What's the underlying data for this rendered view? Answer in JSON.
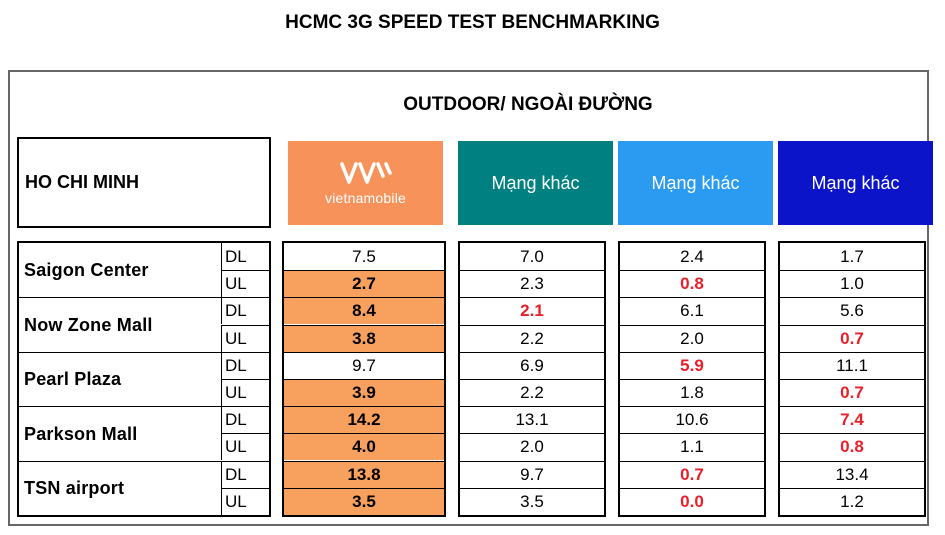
{
  "title": "HCMC 3G SPEED TEST BENCHMARKING",
  "subtitle": "OUTDOOR/ NGOÀI ĐƯỜNG",
  "region_label": "HO CHI MINH",
  "headers": {
    "vietnamobile": "vietnamobile",
    "other1": "Mạng khác",
    "other2": "Mạng khác",
    "other3": "Mạng khác"
  },
  "colors": {
    "vietnamobile": "#f6925a",
    "other1": "#008080",
    "other2": "#2a9bf0",
    "other3": "#0b14c8",
    "highlight": "#f8a15e",
    "worst": "#e8202a"
  },
  "locations": [
    {
      "name": "Saigon Center",
      "dl": "DL",
      "ul": "UL"
    },
    {
      "name": "Now Zone Mall",
      "dl": "DL",
      "ul": "UL"
    },
    {
      "name": "Pearl Plaza",
      "dl": "DL",
      "ul": "UL"
    },
    {
      "name": "Parkson Mall",
      "dl": "DL",
      "ul": "UL"
    },
    {
      "name": "TSN airport",
      "dl": "DL",
      "ul": "UL"
    }
  ],
  "vietnamobile": [
    "7.5",
    "2.7",
    "8.4",
    "3.8",
    "9.7",
    "3.9",
    "14.2",
    "4.0",
    "13.8",
    "3.5"
  ],
  "other1": [
    "7.0",
    "2.3",
    "2.1",
    "2.2",
    "6.9",
    "2.2",
    "13.1",
    "2.0",
    "9.7",
    "3.5"
  ],
  "other2": [
    "2.4",
    "0.8",
    "6.1",
    "2.0",
    "5.9",
    "1.8",
    "10.6",
    "1.1",
    "0.7",
    "0.0"
  ],
  "other3": [
    "1.7",
    "1.0",
    "5.6",
    "0.7",
    "11.1",
    "0.7",
    "7.4",
    "0.8",
    "13.4",
    "1.2"
  ]
}
